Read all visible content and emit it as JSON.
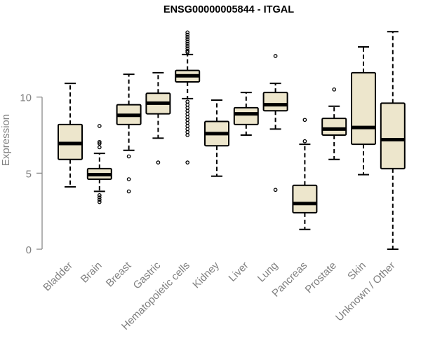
{
  "chart_data": {
    "type": "boxplot",
    "title": "ENSG00000005844 - ITGAL",
    "xlabel": "",
    "ylabel": "Expression",
    "ylim": [
      0,
      14.5
    ],
    "yticks": [
      0,
      5,
      10
    ],
    "box_fill": "#ede6cc",
    "categories": [
      "Bladder",
      "Brain",
      "Breast",
      "Gastric",
      "Hematopoietic cells",
      "Kidney",
      "Liver",
      "Lung",
      "Pancreas",
      "Prostate",
      "Skin",
      "Unknown / Other"
    ],
    "boxes": [
      {
        "min": 4.1,
        "q1": 5.9,
        "median": 6.95,
        "q3": 8.2,
        "max": 10.9,
        "outliers": []
      },
      {
        "min": 3.8,
        "q1": 4.6,
        "median": 4.9,
        "q3": 5.3,
        "max": 6.3,
        "outliers": [
          3.1,
          3.25,
          3.4,
          3.55,
          6.7,
          6.95,
          7.05,
          8.1
        ]
      },
      {
        "min": 6.5,
        "q1": 8.2,
        "median": 8.8,
        "q3": 9.5,
        "max": 11.5,
        "outliers": [
          3.8,
          4.6,
          6.1
        ]
      },
      {
        "min": 7.3,
        "q1": 8.9,
        "median": 9.6,
        "q3": 10.25,
        "max": 11.6,
        "outliers": [
          5.7
        ]
      },
      {
        "min": 9.9,
        "q1": 11.0,
        "median": 11.4,
        "q3": 11.75,
        "max": 12.8,
        "outliers": [
          5.7,
          7.5,
          7.7,
          7.9,
          8.1,
          8.3,
          8.5,
          8.7,
          8.9,
          9.1,
          9.3,
          9.5,
          9.7,
          12.95,
          13.05,
          13.2,
          13.35,
          13.5,
          13.65,
          13.8,
          13.95,
          14.1,
          14.25
        ]
      },
      {
        "min": 4.8,
        "q1": 6.8,
        "median": 7.6,
        "q3": 8.4,
        "max": 9.8,
        "outliers": []
      },
      {
        "min": 7.5,
        "q1": 8.2,
        "median": 8.9,
        "q3": 9.3,
        "max": 10.3,
        "outliers": []
      },
      {
        "min": 7.9,
        "q1": 9.1,
        "median": 9.5,
        "q3": 10.3,
        "max": 10.9,
        "outliers": [
          3.9,
          12.7
        ]
      },
      {
        "min": 1.3,
        "q1": 2.4,
        "median": 3.0,
        "q3": 4.2,
        "max": 6.9,
        "outliers": [
          7.1,
          8.5
        ]
      },
      {
        "min": 5.9,
        "q1": 7.5,
        "median": 7.9,
        "q3": 8.6,
        "max": 9.4,
        "outliers": [
          10.5
        ]
      },
      {
        "min": 4.9,
        "q1": 6.9,
        "median": 8.0,
        "q3": 11.6,
        "max": 13.3,
        "outliers": []
      },
      {
        "min": 0.0,
        "q1": 5.3,
        "median": 7.2,
        "q3": 9.6,
        "max": 14.3,
        "outliers": []
      }
    ]
  }
}
